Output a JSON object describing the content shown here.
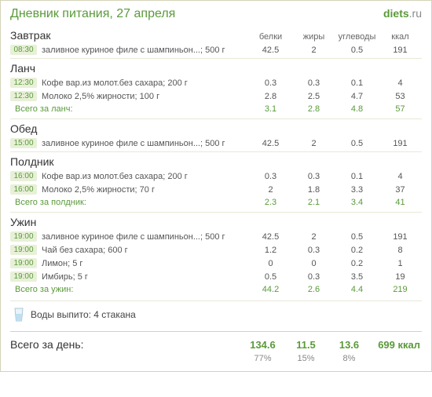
{
  "title": "Дневник питания, 27 апреля",
  "logo": {
    "text": "diets.ru"
  },
  "columns": {
    "protein": "белки",
    "fat": "жиры",
    "carbs": "углеводы",
    "kcal": "ккал"
  },
  "meals": [
    {
      "name": "Завтрак",
      "items": [
        {
          "time": "08:30",
          "food": "заливное куриное филе с шампиньон...; 500 г",
          "p": "42.5",
          "f": "2",
          "c": "0.5",
          "k": "191"
        }
      ],
      "subtotal": null
    },
    {
      "name": "Ланч",
      "items": [
        {
          "time": "12:30",
          "food": "Кофе вар.из молот.без сахара; 200 г",
          "p": "0.3",
          "f": "0.3",
          "c": "0.1",
          "k": "4"
        },
        {
          "time": "12:30",
          "food": "Молоко 2,5% жирности; 100 г",
          "p": "2.8",
          "f": "2.5",
          "c": "4.7",
          "k": "53"
        }
      ],
      "subtotal": {
        "label": "Всего за ланч:",
        "p": "3.1",
        "f": "2.8",
        "c": "4.8",
        "k": "57"
      }
    },
    {
      "name": "Обед",
      "items": [
        {
          "time": "15:00",
          "food": "заливное куриное филе с шампиньон...; 500 г",
          "p": "42.5",
          "f": "2",
          "c": "0.5",
          "k": "191"
        }
      ],
      "subtotal": null
    },
    {
      "name": "Полдник",
      "items": [
        {
          "time": "16:00",
          "food": "Кофе вар.из молот.без сахара; 200 г",
          "p": "0.3",
          "f": "0.3",
          "c": "0.1",
          "k": "4"
        },
        {
          "time": "16:00",
          "food": "Молоко 2,5% жирности; 70 г",
          "p": "2",
          "f": "1.8",
          "c": "3.3",
          "k": "37"
        }
      ],
      "subtotal": {
        "label": "Всего за полдник:",
        "p": "2.3",
        "f": "2.1",
        "c": "3.4",
        "k": "41"
      }
    },
    {
      "name": "Ужин",
      "items": [
        {
          "time": "19:00",
          "food": "заливное куриное филе с шампиньон...; 500 г",
          "p": "42.5",
          "f": "2",
          "c": "0.5",
          "k": "191"
        },
        {
          "time": "19:00",
          "food": "Чай без сахара; 600 г",
          "p": "1.2",
          "f": "0.3",
          "c": "0.2",
          "k": "8"
        },
        {
          "time": "19:00",
          "food": "Лимон; 5 г",
          "p": "0",
          "f": "0",
          "c": "0.2",
          "k": "1"
        },
        {
          "time": "19:00",
          "food": "Имбирь; 5 г",
          "p": "0.5",
          "f": "0.3",
          "c": "3.5",
          "k": "19"
        }
      ],
      "subtotal": {
        "label": "Всего за ужин:",
        "p": "44.2",
        "f": "2.6",
        "c": "4.4",
        "k": "219"
      }
    }
  ],
  "water": {
    "label": "Воды выпито: 4 стакана"
  },
  "day_total": {
    "label": "Всего за день:",
    "p": "134.6",
    "f": "11.5",
    "c": "13.6",
    "k": "699 ккал",
    "pct_p": "77%",
    "pct_f": "15%",
    "pct_c": "8%"
  },
  "colors": {
    "accent": "#5a9a3a",
    "border": "#d4d4b8",
    "row_border": "#e8e8d8",
    "text": "#555555",
    "muted": "#888888",
    "badge_bg": "#e8f0d8"
  }
}
